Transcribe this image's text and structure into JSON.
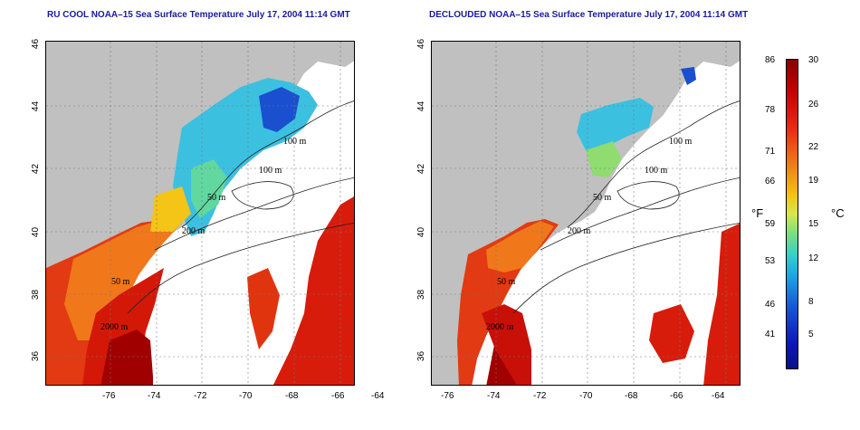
{
  "maps": [
    {
      "title": "RU COOL NOAA–15 Sea Surface Temperature July 17, 2004 11:14 GMT"
    },
    {
      "title": "DECLOUDED NOAA–15 Sea Surface Temperature July 17, 2004 11:14 GMT"
    }
  ],
  "axes": {
    "x_ticks": [
      "-76",
      "-74",
      "-72",
      "-70",
      "-68",
      "-66",
      "-64"
    ],
    "y_ticks": [
      "46",
      "44",
      "42",
      "40",
      "38",
      "36"
    ]
  },
  "contours": {
    "left": [
      "100 m",
      "100 m",
      "50 m",
      "200 m",
      "50 m",
      "2000 m"
    ],
    "right": [
      "100 m",
      "100 m",
      "50 m",
      "200 m",
      "50 m",
      "2000 m"
    ]
  },
  "colorbar": {
    "fahrenheit_unit": "°F",
    "celsius_unit": "°C",
    "fahrenheit_labels": [
      "86",
      "78",
      "71",
      "66",
      "59",
      "53",
      "46",
      "41"
    ],
    "celsius_labels": [
      "30",
      "26",
      "22",
      "19",
      "15",
      "12",
      "8",
      "5"
    ]
  },
  "colors": {
    "land": "#c0c0c0",
    "title": "#1a1aa0",
    "cold": "#1010b0",
    "warm": "#c80000"
  }
}
